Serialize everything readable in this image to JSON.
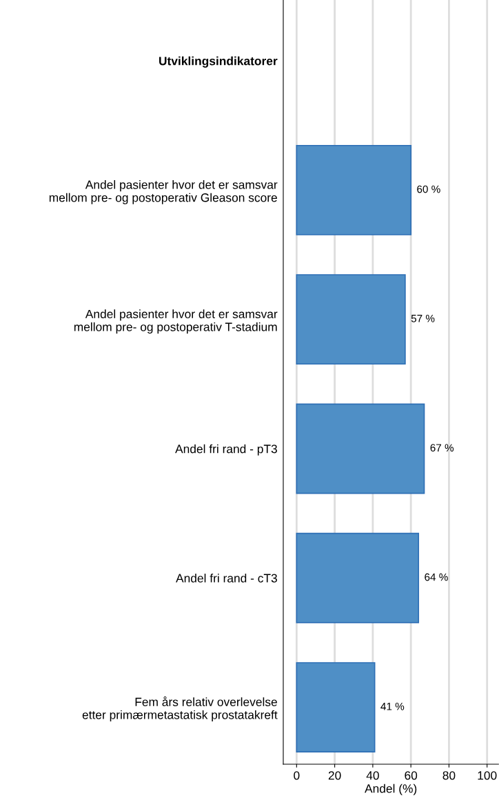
{
  "chart_data": {
    "type": "bar",
    "orientation": "horizontal",
    "categories": [
      "Utviklingsindikatorer",
      "Andel pasienter hvor det er samsvar\nmellom pre- og postoperativ Gleason score",
      "Andel pasienter hvor det er samsvar\nmellom pre- og postoperativ T-stadium",
      "Andel fri rand - pT3",
      "Andel fri rand - cT3",
      "Fem års relativ overlevelse\netter primærmetastatisk prostatakreft"
    ],
    "values": [
      null,
      60,
      57,
      67,
      64,
      41
    ],
    "value_labels": [
      null,
      "60 %",
      "57 %",
      "67 %",
      "64 %",
      "41 %"
    ],
    "color": "#4f8fc6",
    "xlabel": "Andel (%)",
    "xlim": [
      -7,
      106
    ],
    "xticks": [
      0,
      20,
      40,
      60,
      80,
      100
    ],
    "grid": "x",
    "legend": false
  }
}
